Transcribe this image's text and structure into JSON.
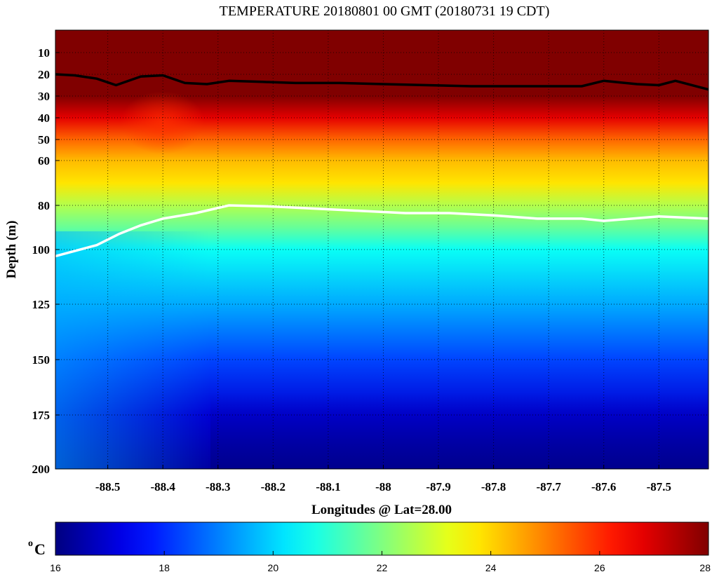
{
  "chart_data": {
    "type": "heatmap",
    "title": "TEMPERATURE 20180801 00 GMT (20180731 19 CDT)",
    "xlabel": "Longitudes @ Lat=28.00",
    "ylabel": "Depth (m)",
    "xlim": [
      -88.595,
      -87.41
    ],
    "ylim": [
      0,
      200
    ],
    "y_axis_scale": "depth increasing downward, non-linear (compressed near surface)",
    "x_ticks": [
      -88.5,
      -88.4,
      -88.3,
      -88.2,
      -88.1,
      -88.0,
      -87.9,
      -87.8,
      -87.7,
      -87.6,
      -87.5
    ],
    "x_tick_labels": [
      "-88.5",
      "-88.4",
      "-88.3",
      "-88.2",
      "-88.1",
      "-88",
      "-87.9",
      "-87.8",
      "-87.7",
      "-87.6",
      "-87.5"
    ],
    "y_ticks": [
      10,
      20,
      30,
      40,
      50,
      60,
      80,
      100,
      125,
      150,
      175,
      200
    ],
    "y_tick_labels": [
      "10",
      "20",
      "30",
      "40",
      "50",
      "60",
      "80",
      "100",
      "125",
      "150",
      "175",
      "200"
    ],
    "grid": true,
    "colormap": "jet",
    "colorbar": {
      "label": "C",
      "label_superscript": "o",
      "clim": [
        16,
        28
      ],
      "ticks": [
        16,
        18,
        20,
        22,
        24,
        26,
        28
      ],
      "tick_labels": [
        "16",
        "18",
        "20",
        "22",
        "24",
        "26",
        "28"
      ]
    },
    "temperature_profile": [
      {
        "depth": 0,
        "temp": 28.5
      },
      {
        "depth": 10,
        "temp": 28.5
      },
      {
        "depth": 20,
        "temp": 28.4
      },
      {
        "depth": 30,
        "temp": 28.0
      },
      {
        "depth": 40,
        "temp": 26.8
      },
      {
        "depth": 50,
        "temp": 25.3
      },
      {
        "depth": 60,
        "temp": 24.3
      },
      {
        "depth": 70,
        "temp": 23.8
      },
      {
        "depth": 80,
        "temp": 22.6
      },
      {
        "depth": 90,
        "temp": 21.7
      },
      {
        "depth": 100,
        "temp": 20.6
      },
      {
        "depth": 125,
        "temp": 19.5
      },
      {
        "depth": 150,
        "temp": 18.3
      },
      {
        "depth": 175,
        "temp": 17.0
      },
      {
        "depth": 200,
        "temp": 16.4
      }
    ],
    "series": [
      {
        "color": "#000000",
        "points": [
          [
            -88.595,
            20
          ],
          [
            -88.56,
            20.5
          ],
          [
            -88.52,
            22
          ],
          [
            -88.485,
            25
          ],
          [
            -88.44,
            21
          ],
          [
            -88.4,
            20.5
          ],
          [
            -88.36,
            24
          ],
          [
            -88.32,
            24.5
          ],
          [
            -88.28,
            23
          ],
          [
            -88.22,
            23.5
          ],
          [
            -88.16,
            24
          ],
          [
            -88.08,
            24
          ],
          [
            -88.0,
            24.5
          ],
          [
            -87.92,
            25
          ],
          [
            -87.84,
            25.5
          ],
          [
            -87.76,
            25.5
          ],
          [
            -87.7,
            25.5
          ],
          [
            -87.64,
            25.5
          ],
          [
            -87.6,
            23
          ],
          [
            -87.54,
            24.5
          ],
          [
            -87.5,
            25
          ],
          [
            -87.47,
            23
          ],
          [
            -87.41,
            27
          ]
        ]
      },
      {
        "color": "#ffffff",
        "points": [
          [
            -88.595,
            103
          ],
          [
            -88.52,
            98
          ],
          [
            -88.48,
            93
          ],
          [
            -88.44,
            89
          ],
          [
            -88.4,
            86
          ],
          [
            -88.34,
            83.5
          ],
          [
            -88.28,
            80
          ],
          [
            -88.2,
            80.5
          ],
          [
            -88.12,
            81.5
          ],
          [
            -88.04,
            82.5
          ],
          [
            -87.96,
            83.5
          ],
          [
            -87.88,
            83.5
          ],
          [
            -87.8,
            84.5
          ],
          [
            -87.72,
            86
          ],
          [
            -87.64,
            86
          ],
          [
            -87.6,
            87
          ],
          [
            -87.5,
            85
          ],
          [
            -87.41,
            86
          ]
        ]
      }
    ]
  }
}
